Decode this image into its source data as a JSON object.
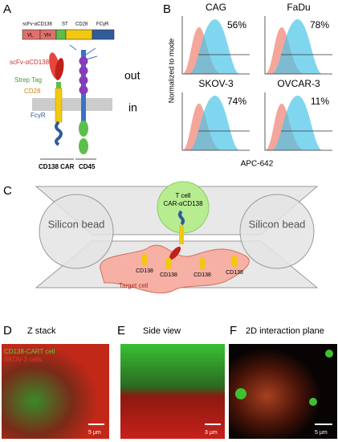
{
  "panel_a": {
    "label": "A",
    "construct": {
      "scfv": "scFv-αCD138",
      "st": "ST",
      "cd28": "CD28",
      "fcr": "FCγR",
      "vl": "VL",
      "vh": "VH"
    },
    "parts": {
      "scfv": "scFv-αCD138",
      "strep": "Strep Tag",
      "cd28": "CD28",
      "fcr": "FcγR"
    },
    "out": "out",
    "in": "in",
    "car": "CD138 CAR",
    "cd45": "CD45"
  },
  "panel_b": {
    "label": "B",
    "y_label": "Normalized to mode",
    "x_label": "APC-642",
    "plots": [
      {
        "name": "CAG",
        "percent": "56%"
      },
      {
        "name": "FaDu",
        "percent": "78%"
      },
      {
        "name": "SKOV-3",
        "percent": "74%"
      },
      {
        "name": "OVCAR-3",
        "percent": "11%"
      }
    ]
  },
  "panel_c": {
    "label": "C",
    "bead_left": "Silicon bead",
    "bead_right": "Silicon bead",
    "t_cell": "T cell",
    "car": "CAR-αCD138",
    "target": "Target cell",
    "cd138": [
      "CD138",
      "CD138",
      "CD138",
      "CD138"
    ]
  },
  "panel_d": {
    "label": "D",
    "title": "Z stack",
    "legend_green": "CD138-CART cell",
    "legend_red": "SKOV-3 cells",
    "scale": "5 µm"
  },
  "panel_e": {
    "label": "E",
    "title": "Side view",
    "scale": "3 µm"
  },
  "panel_f": {
    "label": "F",
    "title": "2D interaction plane",
    "scale": "5 µm"
  }
}
